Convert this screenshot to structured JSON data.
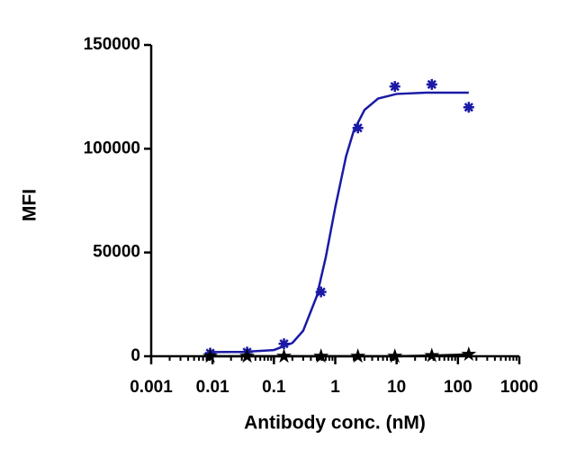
{
  "chart_data": {
    "type": "scatter",
    "x_label": "Antibody conc. (nM)",
    "y_label": "MFI",
    "xscale": "log",
    "xlim": [
      0.001,
      1000
    ],
    "xticks": [
      0.001,
      0.01,
      0.1,
      1,
      10,
      100,
      1000
    ],
    "ylim": [
      0,
      150000
    ],
    "yticks": [
      0,
      50000,
      100000,
      150000
    ],
    "series": [
      {
        "color": "#1a1aa6",
        "marker": "asterisk",
        "x": [
          0.00916,
          0.0366,
          0.146,
          0.586,
          2.34,
          9.375,
          37.5,
          150
        ],
        "values": [
          1500,
          2000,
          6000,
          31000,
          110000,
          130000,
          131000,
          120000
        ]
      },
      {
        "color": "#000000",
        "marker": "star",
        "x": [
          0.00916,
          0.0366,
          0.146,
          0.586,
          2.34,
          9.375,
          37.5,
          150
        ],
        "values": [
          0,
          0,
          0,
          0,
          0,
          0,
          300,
          900
        ]
      }
    ],
    "curves": [
      {
        "color": "#1a1aa6",
        "x": [
          0.00916,
          0.03,
          0.1,
          0.2,
          0.3,
          0.5,
          0.7,
          1,
          1.5,
          2,
          3,
          5,
          10,
          30,
          150
        ],
        "values": [
          2000,
          2070,
          2990,
          6400,
          12250,
          28940,
          47650,
          71700,
          96340,
          108600,
          118700,
          124200,
          126400,
          127000,
          127000
        ]
      },
      {
        "color": "#000000",
        "x": [
          0.00916,
          0.0366,
          0.146,
          0.586,
          2.34,
          9.375,
          37.5,
          150
        ],
        "values": [
          0,
          0,
          0,
          0,
          0,
          0,
          300,
          900
        ]
      }
    ]
  }
}
